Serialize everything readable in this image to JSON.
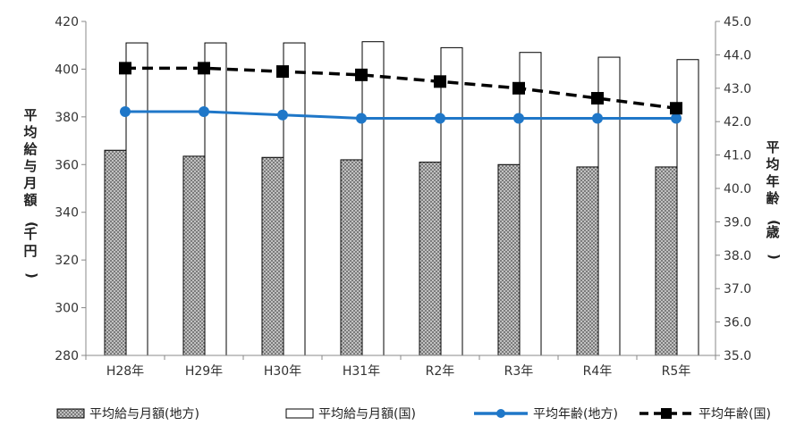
{
  "chart_data": {
    "type": "bar",
    "categories": [
      "H28年",
      "H29年",
      "H30年",
      "H31年",
      "R2年",
      "R3年",
      "R4年",
      "R5年"
    ],
    "y_left": {
      "label": "平均給与月額(千円)",
      "min": 280,
      "max": 420,
      "step": 20,
      "ticks": [
        "280",
        "300",
        "320",
        "340",
        "360",
        "380",
        "400",
        "420"
      ]
    },
    "y_right": {
      "label": "平均年齢(歳)",
      "min": 35.0,
      "max": 45.0,
      "step": 1.0,
      "ticks": [
        "35.0",
        "36.0",
        "37.0",
        "38.0",
        "39.0",
        "40.0",
        "41.0",
        "42.0",
        "43.0",
        "44.0",
        "45.0"
      ]
    },
    "series": [
      {
        "name": "平均給与月額(地方)",
        "kind": "bar",
        "axis": "left",
        "pattern": "crosshatch",
        "values": [
          366,
          363.5,
          363,
          362,
          361,
          360,
          359,
          359
        ]
      },
      {
        "name": "平均給与月額(国)",
        "kind": "bar",
        "axis": "left",
        "pattern": "white",
        "values": [
          411,
          411,
          411,
          411.5,
          409,
          407,
          405,
          404
        ]
      },
      {
        "name": "平均年齢(地方)",
        "kind": "line",
        "axis": "right",
        "color": "#1f77c8",
        "marker": "circle",
        "dash": "solid",
        "values": [
          42.3,
          42.3,
          42.2,
          42.1,
          42.1,
          42.1,
          42.1,
          42.1
        ]
      },
      {
        "name": "平均年齢(国)",
        "kind": "line",
        "axis": "right",
        "color": "#000000",
        "marker": "square",
        "dash": "dashed",
        "values": [
          43.6,
          43.6,
          43.5,
          43.4,
          43.2,
          43.0,
          42.7,
          42.4
        ]
      }
    ],
    "legend_position": "bottom",
    "grid": false
  }
}
